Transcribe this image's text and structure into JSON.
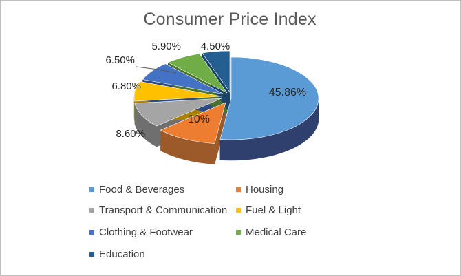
{
  "chart_data": {
    "type": "pie",
    "title": "Consumer Price Index",
    "style": "3d-exploded",
    "legend_position": "bottom",
    "slices": [
      {
        "label": "Food & Beverages",
        "value": 45.86,
        "display": "45.86%",
        "color": "#5b9bd5",
        "side_color": "#2f3f6e"
      },
      {
        "label": "Housing",
        "value": 10,
        "display": "10%",
        "color": "#ed7d31",
        "side_color": "#9c5a2a"
      },
      {
        "label": "Transport & Communication",
        "value": 8.6,
        "display": "8.60%",
        "color": "#a5a5a5",
        "side_color": "#6f6f6f"
      },
      {
        "label": "Fuel & Light",
        "value": 6.8,
        "display": "6.80%",
        "color": "#ffc000",
        "side_color": "#a88200"
      },
      {
        "label": "Clothing & Footwear",
        "value": 6.5,
        "display": "6.50%",
        "color": "#4472c4",
        "side_color": "#2c4a80"
      },
      {
        "label": "Medical Care",
        "value": 5.9,
        "display": "5.90%",
        "color": "#70ad47",
        "side_color": "#4a732f"
      },
      {
        "label": "Education",
        "value": 4.5,
        "display": "4.50%",
        "color": "#255e91",
        "side_color": "#1a4366"
      }
    ]
  }
}
